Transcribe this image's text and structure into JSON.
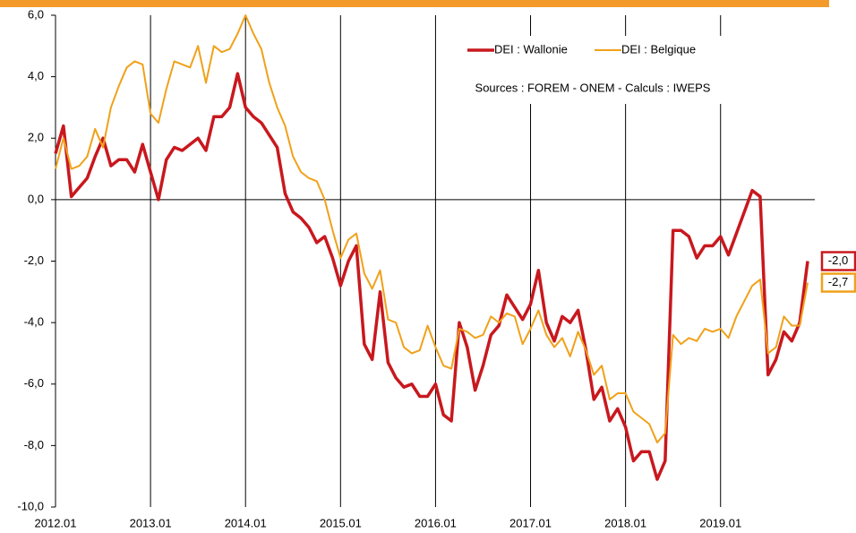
{
  "chart_data": {
    "type": "line",
    "annotation": "Sources : FOREM - ONEM - Calculs : IWEPS",
    "categories": [
      "2012.01",
      null,
      null,
      null,
      null,
      null,
      null,
      null,
      null,
      null,
      null,
      null,
      "2013.01",
      null,
      null,
      null,
      null,
      null,
      null,
      null,
      null,
      null,
      null,
      null,
      "2014.01",
      null,
      null,
      null,
      null,
      null,
      null,
      null,
      null,
      null,
      null,
      null,
      "2015.01",
      null,
      null,
      null,
      null,
      null,
      null,
      null,
      null,
      null,
      null,
      null,
      "2016.01",
      null,
      null,
      null,
      null,
      null,
      null,
      null,
      null,
      null,
      null,
      null,
      "2017.01",
      null,
      null,
      null,
      null,
      null,
      null,
      null,
      null,
      null,
      null,
      null,
      "2018.01",
      null,
      null,
      null,
      null,
      null,
      null,
      null,
      null,
      null,
      null,
      null,
      "2019.01",
      null,
      null,
      null,
      null,
      null,
      null,
      null,
      null,
      null,
      null,
      null
    ],
    "series": [
      {
        "name": "DEI : Wallonie",
        "color": "#c8181e",
        "width": 3.5,
        "values": [
          1.5,
          2.4,
          0.1,
          0.4,
          0.7,
          1.4,
          2.0,
          1.1,
          1.3,
          1.3,
          0.9,
          1.8,
          0.9,
          0.0,
          1.3,
          1.7,
          1.6,
          1.8,
          2.0,
          1.6,
          2.7,
          2.7,
          3.0,
          4.1,
          3.0,
          2.7,
          2.5,
          2.1,
          1.7,
          0.2,
          -0.4,
          -0.6,
          -0.9,
          -1.4,
          -1.2,
          -1.9,
          -2.8,
          -2.0,
          -1.5,
          -4.7,
          -5.2,
          -3.0,
          -5.3,
          -5.8,
          -6.1,
          -6.0,
          -6.4,
          -6.4,
          -6.0,
          -7.0,
          -7.2,
          -4.0,
          -4.8,
          -6.2,
          -5.4,
          -4.4,
          -4.1,
          -3.1,
          -3.5,
          -3.9,
          -3.4,
          -2.3,
          -4.0,
          -4.6,
          -3.8,
          -4.0,
          -3.6,
          -4.9,
          -6.5,
          -6.1,
          -7.2,
          -6.8,
          -7.4,
          -8.5,
          -8.2,
          -8.2,
          -9.1,
          -8.5,
          -1.0,
          -1.0,
          -1.2,
          -1.9,
          -1.5,
          -1.5,
          -1.2,
          -1.8,
          -1.1,
          -0.4,
          0.3,
          0.1,
          -5.7,
          -5.2,
          -4.3,
          -4.6,
          -4.0,
          -2.0
        ],
        "value_labels": [
          null,
          null,
          null,
          null,
          null,
          null,
          null,
          null,
          null,
          null,
          null,
          null,
          null,
          null,
          null,
          null,
          null,
          null,
          null,
          null,
          null,
          null,
          null,
          null,
          null,
          null,
          null,
          null,
          null,
          null,
          null,
          null,
          null,
          null,
          null,
          null,
          null,
          null,
          null,
          null,
          null,
          null,
          null,
          null,
          null,
          null,
          null,
          null,
          null,
          null,
          null,
          null,
          null,
          null,
          null,
          null,
          null,
          null,
          null,
          null,
          null,
          null,
          null,
          null,
          null,
          null,
          null,
          null,
          null,
          null,
          null,
          null,
          null,
          null,
          null,
          null,
          null,
          null,
          null,
          null,
          null,
          null,
          null,
          null,
          null,
          null,
          null,
          null,
          null,
          null,
          null,
          null,
          null,
          null,
          null,
          "-2,0"
        ]
      },
      {
        "name": "DEI : Belgique",
        "color": "#f0a11a",
        "width": 2,
        "values": [
          1.0,
          2.0,
          1.0,
          1.1,
          1.4,
          2.3,
          1.7,
          3.0,
          3.7,
          4.3,
          4.5,
          4.4,
          2.8,
          2.5,
          3.6,
          4.5,
          4.4,
          4.3,
          5.0,
          3.8,
          5.0,
          4.8,
          4.9,
          5.4,
          6.0,
          5.4,
          4.9,
          3.8,
          3.0,
          2.4,
          1.4,
          0.9,
          0.7,
          0.6,
          0.0,
          -1.0,
          -1.9,
          -1.3,
          -1.1,
          -2.4,
          -2.9,
          -2.3,
          -3.9,
          -4.0,
          -4.8,
          -5.0,
          -4.9,
          -4.1,
          -4.8,
          -5.4,
          -5.5,
          -4.2,
          -4.3,
          -4.5,
          -4.4,
          -3.8,
          -4.0,
          -3.7,
          -3.8,
          -4.7,
          -4.2,
          -3.6,
          -4.4,
          -4.8,
          -4.5,
          -5.1,
          -4.3,
          -4.9,
          -5.7,
          -5.4,
          -6.5,
          -6.3,
          -6.3,
          -6.9,
          -7.1,
          -7.3,
          -7.9,
          -7.6,
          -4.4,
          -4.7,
          -4.5,
          -4.6,
          -4.2,
          -4.3,
          -4.2,
          -4.5,
          -3.8,
          -3.3,
          -2.8,
          -2.6,
          -5.0,
          -4.8,
          -3.8,
          -4.1,
          -4.1,
          -2.7
        ],
        "value_labels": [
          null,
          null,
          null,
          null,
          null,
          null,
          null,
          null,
          null,
          null,
          null,
          null,
          null,
          null,
          null,
          null,
          null,
          null,
          null,
          null,
          null,
          null,
          null,
          null,
          null,
          null,
          null,
          null,
          null,
          null,
          null,
          null,
          null,
          null,
          null,
          null,
          null,
          null,
          null,
          null,
          null,
          null,
          null,
          null,
          null,
          null,
          null,
          null,
          null,
          null,
          null,
          null,
          null,
          null,
          null,
          null,
          null,
          null,
          null,
          null,
          null,
          null,
          null,
          null,
          null,
          null,
          null,
          null,
          null,
          null,
          null,
          null,
          null,
          null,
          null,
          null,
          null,
          null,
          null,
          null,
          null,
          null,
          null,
          null,
          null,
          null,
          null,
          null,
          null,
          null,
          null,
          null,
          null,
          null,
          null,
          "-2,7"
        ]
      }
    ],
    "ylim": [
      -10,
      6
    ],
    "yticks": [
      {
        "value": -10,
        "label": "-10,0"
      },
      {
        "value": -8,
        "label": "-8,0"
      },
      {
        "value": -6,
        "label": "-6,0"
      },
      {
        "value": -4,
        "label": "-4,0"
      },
      {
        "value": -2,
        "label": "-2,0"
      },
      {
        "value": 0,
        "label": "0,0"
      },
      {
        "value": 2,
        "label": "2,0"
      },
      {
        "value": 4,
        "label": "4,0"
      },
      {
        "value": 6,
        "label": "6,0"
      }
    ]
  }
}
